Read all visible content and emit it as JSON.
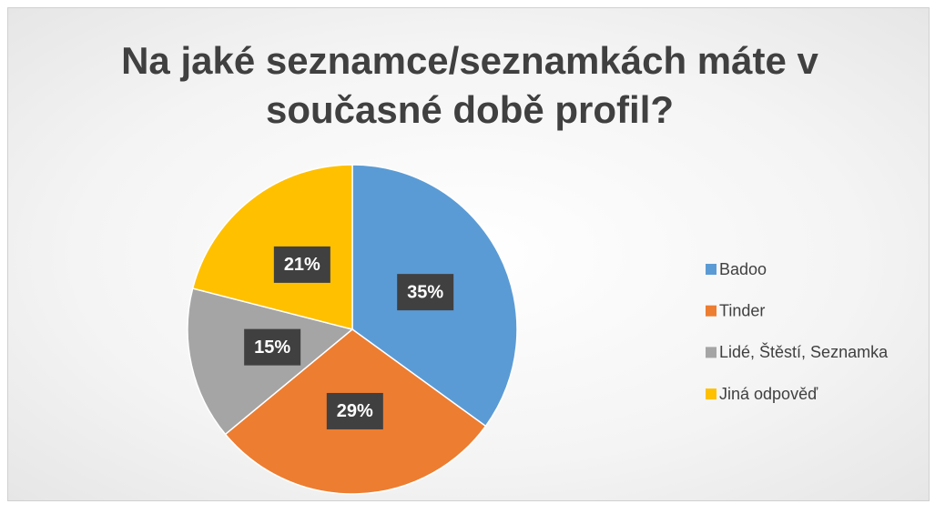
{
  "chart_data": {
    "type": "pie",
    "title": "Na jaké seznamce/seznamkách máte v současné době profil?",
    "categories": [
      "Badoo",
      "Tinder",
      "Lidé, Štěstí, Seznamka",
      "Jiná odpověď"
    ],
    "values": [
      35,
      29,
      15,
      21
    ],
    "value_labels": [
      "35%",
      "29%",
      "15%",
      "21%"
    ],
    "colors": [
      "#5B9BD5",
      "#ED7D31",
      "#A5A5A5",
      "#FFC000"
    ],
    "legend": "right"
  }
}
